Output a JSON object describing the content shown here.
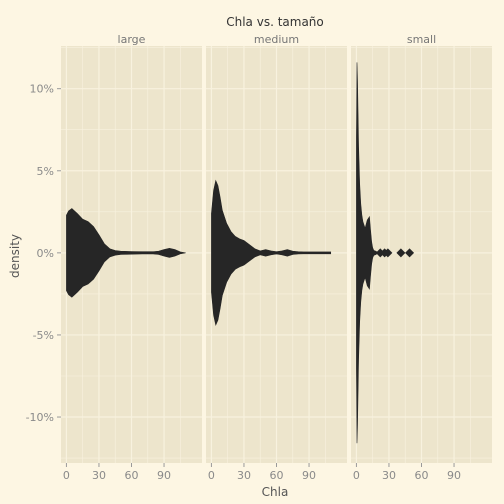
{
  "chart_data": {
    "type": "violin",
    "title": "Chla  vs.  tamaño",
    "xlabel": "Chla",
    "ylabel": "density",
    "x_ticks": [
      0,
      30,
      60,
      90
    ],
    "xlim": [
      -5,
      125
    ],
    "y_ticks": [
      -10,
      -5,
      0,
      5,
      10
    ],
    "y_tick_labels": [
      "-10%",
      "-5%",
      "0%",
      "5%",
      "10%"
    ],
    "ylim": [
      -12.8,
      12.6
    ],
    "grid": true,
    "colors": {
      "background": "#fdf6e3",
      "panel": "#ede5cc",
      "grid": "#f8f2df",
      "fill": "#262626"
    },
    "panels": [
      {
        "name": "large",
        "x": [
          0,
          2,
          5,
          10,
          15,
          20,
          25,
          30,
          35,
          40,
          45,
          50,
          60,
          70,
          80,
          85,
          90,
          95,
          100,
          105,
          110
        ],
        "density": [
          2.3,
          2.55,
          2.7,
          2.4,
          2.05,
          1.9,
          1.6,
          1.1,
          0.55,
          0.25,
          0.14,
          0.1,
          0.08,
          0.07,
          0.07,
          0.1,
          0.2,
          0.28,
          0.2,
          0.06,
          0.0
        ],
        "outliers": []
      },
      {
        "name": "medium",
        "x": [
          0,
          2,
          4,
          6,
          8,
          10,
          14,
          18,
          22,
          26,
          30,
          35,
          40,
          45,
          50,
          55,
          60,
          65,
          70,
          75,
          80,
          85,
          90,
          100,
          110
        ],
        "density": [
          2.4,
          3.8,
          4.4,
          4.1,
          3.4,
          2.6,
          1.8,
          1.3,
          1.0,
          0.85,
          0.75,
          0.5,
          0.25,
          0.12,
          0.2,
          0.12,
          0.07,
          0.12,
          0.2,
          0.1,
          0.07,
          0.06,
          0.06,
          0.06,
          0.06
        ],
        "outliers": []
      },
      {
        "name": "small",
        "x": [
          0,
          0.5,
          1,
          1.5,
          2,
          3,
          4,
          5,
          6,
          8,
          10,
          12,
          13,
          14,
          15,
          16,
          18,
          20
        ],
        "density": [
          7.0,
          11.6,
          10.5,
          8.5,
          6.5,
          4.2,
          3.0,
          2.3,
          1.9,
          1.5,
          2.0,
          2.2,
          1.4,
          0.7,
          0.3,
          0.15,
          0.1,
          0.0
        ],
        "outliers": [
          22,
          26,
          29,
          41,
          49
        ]
      }
    ]
  }
}
